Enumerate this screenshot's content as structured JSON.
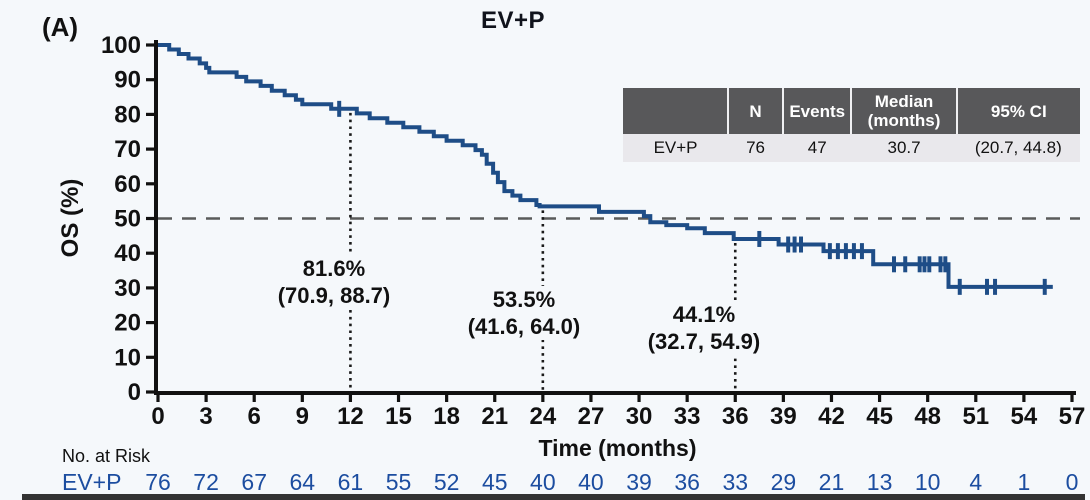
{
  "colors": {
    "background": "#f5f8fb",
    "curve": "#1e4d87",
    "risk_text": "#1c4da0",
    "axis": "#111111",
    "reference_dash": "#5a5a5a",
    "milestone_dots": "#1a1a1a",
    "table_header_bg": "#58585a",
    "table_row_bg": "#e9e8ec"
  },
  "panel_label": "(A)",
  "chart_data": {
    "type": "line",
    "subtype": "kaplan-meier-step",
    "title": "EV+P",
    "xlabel": "Time (months)",
    "ylabel": "OS (%)",
    "xlim": [
      0,
      57
    ],
    "ylim": [
      0,
      100
    ],
    "x_ticks": [
      0,
      3,
      6,
      9,
      12,
      15,
      18,
      21,
      24,
      27,
      30,
      33,
      36,
      39,
      42,
      45,
      48,
      51,
      54,
      57
    ],
    "y_ticks": [
      0,
      10,
      20,
      30,
      40,
      50,
      60,
      70,
      80,
      90,
      100
    ],
    "grid": false,
    "reference_line_y": 50,
    "series": [
      {
        "name": "EV+P",
        "steps": [
          [
            0,
            100
          ],
          [
            0.7,
            98.7
          ],
          [
            1.3,
            97.4
          ],
          [
            1.9,
            96.1
          ],
          [
            2.6,
            94.7
          ],
          [
            3.0,
            93.4
          ],
          [
            3.2,
            92.1
          ],
          [
            4.9,
            90.8
          ],
          [
            5.5,
            89.5
          ],
          [
            6.4,
            88.2
          ],
          [
            7.1,
            86.8
          ],
          [
            7.9,
            85.5
          ],
          [
            8.6,
            84.2
          ],
          [
            9.0,
            82.9
          ],
          [
            10.8,
            81.6
          ],
          [
            12.4,
            80.3
          ],
          [
            13.2,
            78.9
          ],
          [
            14.3,
            77.6
          ],
          [
            15.3,
            76.3
          ],
          [
            16.3,
            75.0
          ],
          [
            17.2,
            73.7
          ],
          [
            18.0,
            72.4
          ],
          [
            19.0,
            71.1
          ],
          [
            19.8,
            69.7
          ],
          [
            20.2,
            68.4
          ],
          [
            20.5,
            65.8
          ],
          [
            20.9,
            63.2
          ],
          [
            21.2,
            60.5
          ],
          [
            21.6,
            57.9
          ],
          [
            22.1,
            56.6
          ],
          [
            22.6,
            55.3
          ],
          [
            23.6,
            53.9
          ],
          [
            23.8,
            53.5
          ],
          [
            27.5,
            51.9
          ],
          [
            30.3,
            50.7
          ],
          [
            30.7,
            48.9
          ],
          [
            31.7,
            48.1
          ],
          [
            33.0,
            47.2
          ],
          [
            34.1,
            45.8
          ],
          [
            35.9,
            44.1
          ],
          [
            38.7,
            42.5
          ],
          [
            41.5,
            40.6
          ],
          [
            44.6,
            36.8
          ],
          [
            49.3,
            30.3
          ]
        ],
        "end_time": 55.8,
        "censor_marks": [
          [
            11.3,
            81.6
          ],
          [
            37.5,
            44.1
          ],
          [
            39.3,
            42.5
          ],
          [
            39.7,
            42.5
          ],
          [
            40.1,
            42.5
          ],
          [
            41.9,
            40.6
          ],
          [
            42.4,
            40.6
          ],
          [
            42.9,
            40.6
          ],
          [
            43.4,
            40.6
          ],
          [
            43.9,
            40.6
          ],
          [
            45.9,
            36.8
          ],
          [
            46.6,
            36.8
          ],
          [
            47.5,
            36.8
          ],
          [
            47.8,
            36.8
          ],
          [
            48.1,
            36.8
          ],
          [
            48.8,
            36.8
          ],
          [
            49.1,
            36.8
          ],
          [
            50.0,
            30.3
          ],
          [
            51.7,
            30.3
          ],
          [
            52.2,
            30.3
          ],
          [
            55.3,
            30.3
          ]
        ]
      }
    ],
    "milestones": [
      {
        "time": 12,
        "rate": 81.6,
        "rate_label": "81.6%",
        "ci_label": "(70.9, 88.7)"
      },
      {
        "time": 24,
        "rate": 53.5,
        "rate_label": "53.5%",
        "ci_label": "(41.6, 64.0)"
      },
      {
        "time": 36,
        "rate": 44.1,
        "rate_label": "44.1%",
        "ci_label": "(32.7, 54.9)"
      }
    ]
  },
  "stats_table": {
    "headers": [
      "",
      "N",
      "Events",
      "Median\n(months)",
      "95% CI"
    ],
    "rows": [
      [
        "EV+P",
        "76",
        "47",
        "30.7",
        "(20.7, 44.8)"
      ]
    ]
  },
  "risk_table": {
    "title": "No. at Risk",
    "row_label": "EV+P",
    "counts": [
      76,
      72,
      67,
      64,
      61,
      55,
      52,
      45,
      40,
      40,
      39,
      36,
      33,
      29,
      21,
      13,
      10,
      4,
      1,
      0
    ]
  }
}
